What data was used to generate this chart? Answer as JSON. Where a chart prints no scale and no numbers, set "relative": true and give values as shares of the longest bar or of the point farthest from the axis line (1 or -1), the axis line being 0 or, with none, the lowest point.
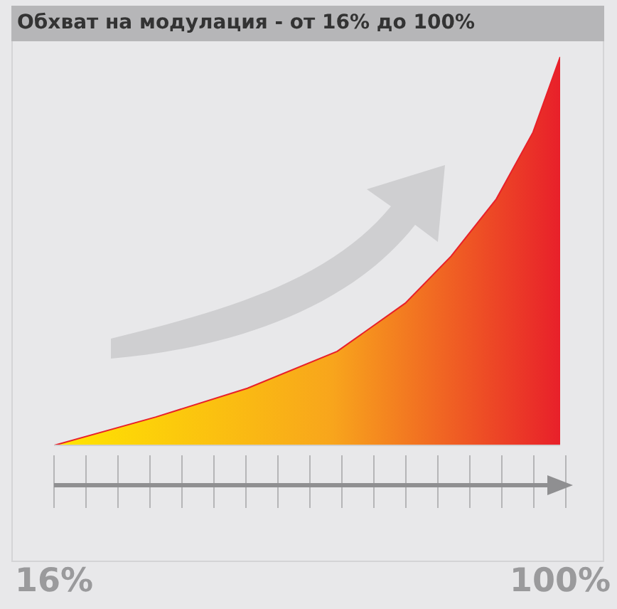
{
  "chart_data": {
    "type": "area",
    "title": "Обхват на модулация - от 16% до 100%",
    "relative": true,
    "x": [
      16,
      32.9,
      48.1,
      63.0,
      74.3,
      81.9,
      89.4,
      95.5,
      100
    ],
    "values": [
      0,
      0.073,
      0.147,
      0.242,
      0.366,
      0.487,
      0.634,
      0.806,
      1
    ],
    "color": "#e8202a",
    "xlim": [
      16,
      100
    ],
    "xticks": [
      {
        "value": 16,
        "label": "16%"
      },
      {
        "value": 100,
        "label": "100%"
      }
    ]
  }
}
